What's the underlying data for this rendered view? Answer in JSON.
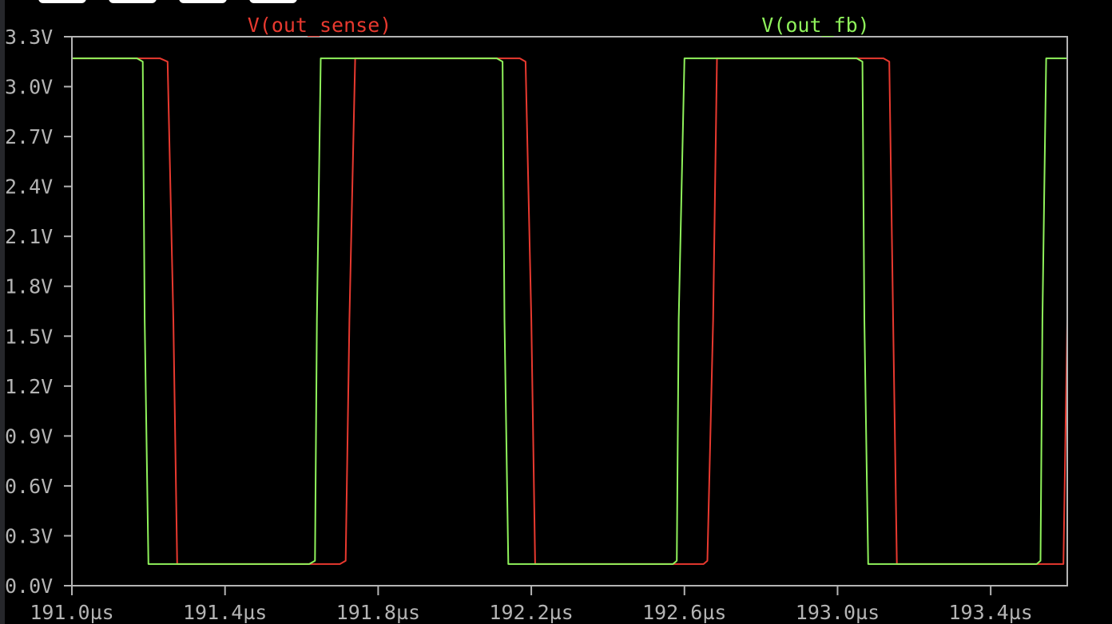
{
  "chart_data": {
    "type": "line",
    "title": "",
    "xlabel": "",
    "ylabel": "",
    "xlim": [
      191.0,
      193.6
    ],
    "ylim": [
      0.0,
      3.3
    ],
    "grid": false,
    "x_ticks": [
      191.0,
      191.4,
      191.8,
      192.2,
      192.6,
      193.0,
      193.4
    ],
    "x_tick_labels": [
      "191.0µs",
      "191.4µs",
      "191.8µs",
      "192.2µs",
      "192.6µs",
      "193.0µs",
      "193.4µs"
    ],
    "y_ticks": [
      0.0,
      0.3,
      0.6,
      0.9,
      1.2,
      1.5,
      1.8,
      2.1,
      2.4,
      2.7,
      3.0,
      3.3
    ],
    "y_tick_labels": [
      "0.0V",
      "0.3V",
      "0.6V",
      "0.9V",
      "1.2V",
      "1.5V",
      "1.8V",
      "2.1V",
      "2.4V",
      "2.7V",
      "3.0V",
      "3.3V"
    ],
    "series": [
      {
        "name": "V(out_sense)",
        "color": "#e8392f",
        "x": [
          191.0,
          191.23,
          191.25,
          191.265,
          191.275,
          191.7,
          191.715,
          191.725,
          191.74,
          192.17,
          192.185,
          192.2,
          192.21,
          192.65,
          192.66,
          192.675,
          192.685,
          193.12,
          193.135,
          193.145,
          193.155,
          193.59,
          193.6
        ],
        "values": [
          3.17,
          3.17,
          3.15,
          1.6,
          0.13,
          0.13,
          0.15,
          1.6,
          3.17,
          3.17,
          3.15,
          1.6,
          0.13,
          0.13,
          0.15,
          1.6,
          3.17,
          3.17,
          3.15,
          1.6,
          0.13,
          0.13,
          1.6
        ]
      },
      {
        "name": "V(out_fb)",
        "color": "#8ff25b",
        "x": [
          191.0,
          191.17,
          191.185,
          191.19,
          191.2,
          191.62,
          191.635,
          191.64,
          191.65,
          192.11,
          192.125,
          192.13,
          192.14,
          192.57,
          192.58,
          192.585,
          192.6,
          193.05,
          193.065,
          193.07,
          193.08,
          193.52,
          193.53,
          193.535,
          193.545,
          193.6
        ],
        "values": [
          3.17,
          3.17,
          3.15,
          1.6,
          0.13,
          0.13,
          0.15,
          1.6,
          3.17,
          3.17,
          3.15,
          1.6,
          0.13,
          0.13,
          0.15,
          1.6,
          3.17,
          3.17,
          3.15,
          1.6,
          0.13,
          0.13,
          0.15,
          1.6,
          3.17,
          3.17
        ]
      }
    ]
  },
  "style": {
    "background": "#000000",
    "axis_color": "#b4b4b4",
    "tick_label_color": "#b4b4b4"
  }
}
